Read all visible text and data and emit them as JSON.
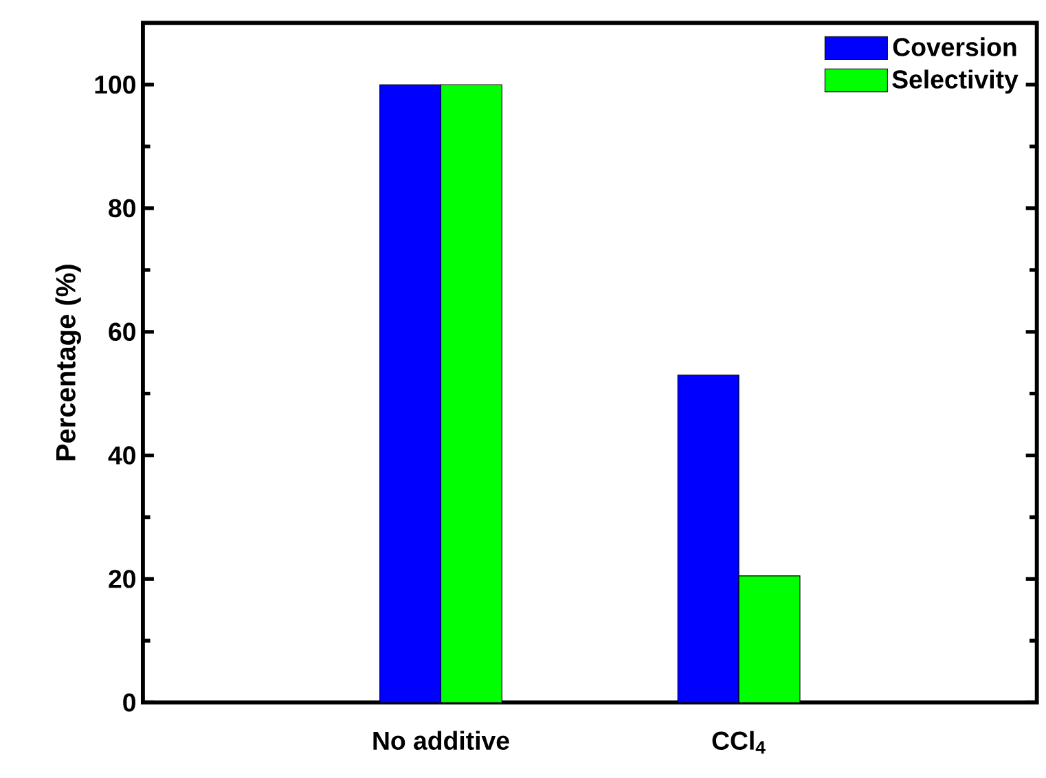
{
  "chart_data": {
    "type": "bar",
    "categories": [
      "No additive",
      "CCl$_{4}$"
    ],
    "series": [
      {
        "name": "Coversion",
        "color": "#0000ff",
        "values": [
          100,
          53
        ]
      },
      {
        "name": "Selectivity",
        "color": "#00ff00",
        "values": [
          100,
          20.5
        ]
      }
    ],
    "ylabel": "Percentage (%)",
    "ylim": [
      0,
      110
    ],
    "yticks": [
      0,
      20,
      40,
      60,
      80,
      100
    ],
    "legend": "top right"
  }
}
